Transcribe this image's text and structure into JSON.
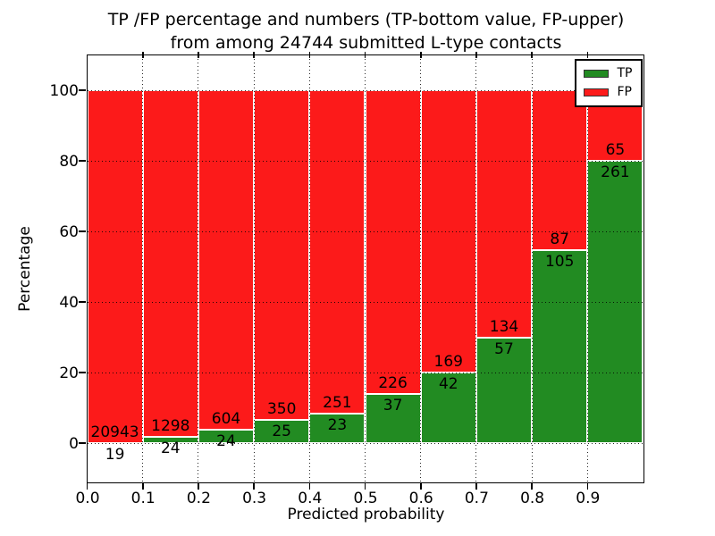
{
  "figure": {
    "title_line1": "TP /FP percentage and numbers (TP-bottom value, FP-upper)",
    "title_line2": "from among 24744 submitted L-type contacts"
  },
  "chart_data": {
    "type": "bar",
    "stacked": true,
    "normalized_to": 100,
    "title": "TP /FP percentage and numbers (TP-bottom value, FP-upper) from among 24744 submitted L-type contacts",
    "xlabel": "Predicted probability",
    "ylabel": "Percentage",
    "total_submitted_contacts": 24744,
    "categories": [
      "0.0-0.1",
      "0.1-0.2",
      "0.2-0.3",
      "0.3-0.4",
      "0.4-0.5",
      "0.5-0.6",
      "0.6-0.7",
      "0.7-0.8",
      "0.8-0.9",
      "0.9-1.0"
    ],
    "x_tick_labels": [
      "0.0",
      "0.1",
      "0.2",
      "0.3",
      "0.4",
      "0.5",
      "0.6",
      "0.7",
      "0.8",
      "0.9"
    ],
    "y_tick_values": [
      0,
      20,
      40,
      60,
      80,
      100
    ],
    "xlim": [
      0.0,
      1.0
    ],
    "ylim": [
      -11,
      110
    ],
    "grid": "dotted",
    "bar_width": 0.1,
    "series": [
      {
        "name": "TP",
        "color": "#228b22",
        "position": "bottom",
        "counts": [
          19,
          24,
          24,
          25,
          23,
          37,
          42,
          57,
          105,
          261
        ]
      },
      {
        "name": "FP",
        "color": "#fc1a1a",
        "position": "top",
        "counts": [
          20943,
          1298,
          604,
          350,
          251,
          226,
          169,
          134,
          87,
          65
        ]
      }
    ],
    "legend": {
      "position": "upper right",
      "entries": [
        "TP",
        "FP"
      ]
    }
  }
}
